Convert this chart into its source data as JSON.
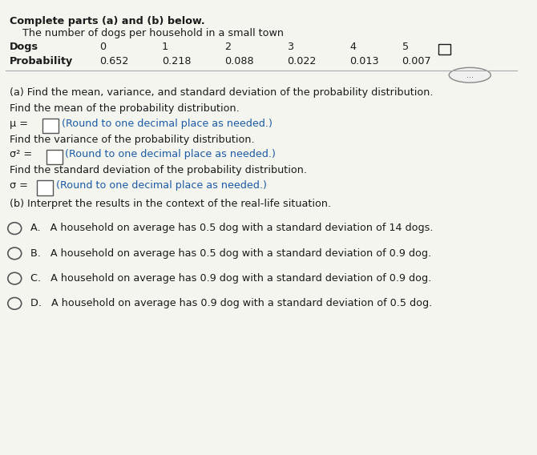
{
  "bg_color": "#f5f5f0",
  "title_line": "Complete parts (a) and (b) below.",
  "subtitle": "    The number of dogs per household in a small town",
  "dogs_label": "Dogs",
  "dogs_values": [
    "0",
    "1",
    "2",
    "3",
    "4",
    "5"
  ],
  "prob_label": "Probability",
  "prob_values": [
    "0.652",
    "0.218",
    "0.088",
    "0.022",
    "0.013",
    "0.007"
  ],
  "part_a_header": "(a) Find the mean, variance, and standard deviation of the probability distribution.",
  "mean_label": "Find the mean of the probability distribution.",
  "mean_eq": "μ =",
  "mean_round": "(Round to one decimal place as needed.)",
  "var_label": "Find the variance of the probability distribution.",
  "var_eq": "σ² =",
  "var_round": "(Round to one decimal place as needed.)",
  "std_label": "Find the standard deviation of the probability distribution.",
  "std_eq": "σ =",
  "std_round": "(Round to one decimal place as needed.)",
  "part_b_header": "(b) Interpret the results in the context of the real-life situation.",
  "option_a": "A.   A household on average has 0.5 dog with a standard deviation of 14 dogs.",
  "option_b": "B.   A household on average has 0.5 dog with a standard deviation of 0.9 dog.",
  "option_c": "C.   A household on average has 0.9 dog with a standard deviation of 0.9 dog.",
  "option_d": "D.   A household on average has 0.9 dog with a standard deviation of 0.5 dog.",
  "text_color": "#1a1a1a",
  "blue_color": "#1a5ba6",
  "circle_color": "#555555"
}
